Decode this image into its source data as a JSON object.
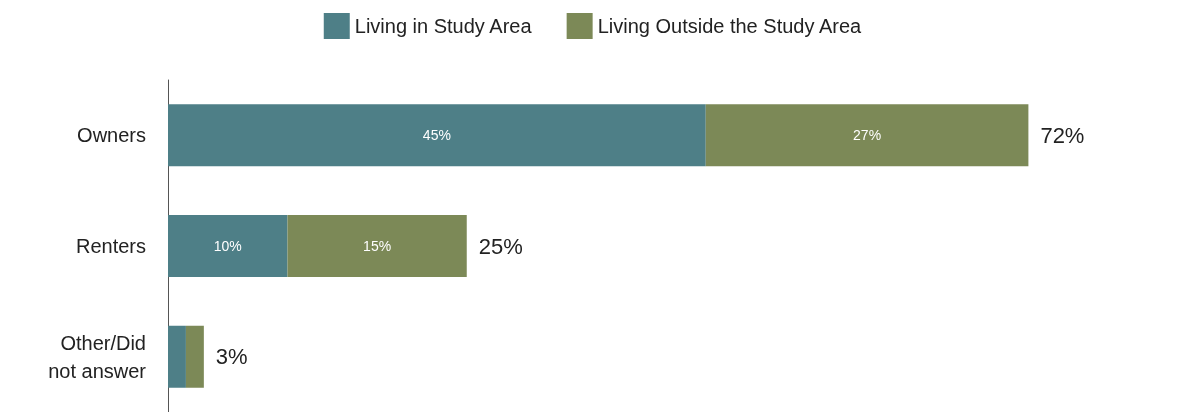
{
  "chart_data": {
    "type": "bar",
    "orientation": "horizontal",
    "stacked": true,
    "categories": [
      "Owners",
      "Renters",
      "Other/Did\nnot answer"
    ],
    "series": [
      {
        "name": "Living in Study Area",
        "color": "#4e7f87",
        "values": [
          45,
          10,
          1.5
        ],
        "value_labels": [
          "45%",
          "10%",
          null
        ]
      },
      {
        "name": "Living Outside the Study Area",
        "color": "#7c8957",
        "values": [
          27,
          15,
          1.5
        ],
        "value_labels": [
          "27%",
          "15%",
          null
        ]
      }
    ],
    "totals": [
      "72%",
      "25%",
      "3%"
    ],
    "legend": "top"
  }
}
